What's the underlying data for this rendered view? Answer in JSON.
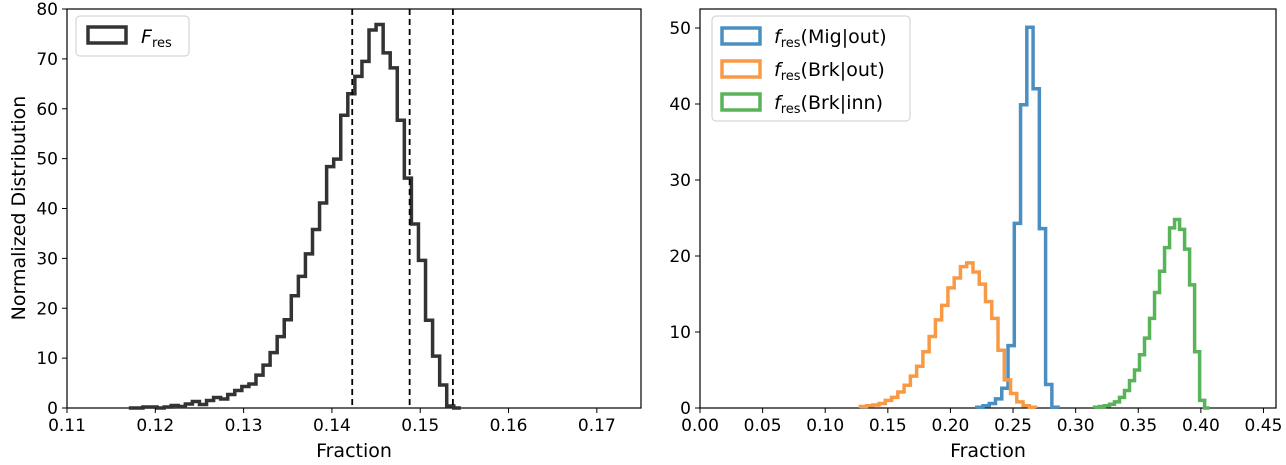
{
  "chart_data": [
    {
      "type": "histogram",
      "xlabel": "Fraction",
      "ylabel": "Normalized Distribution",
      "xlim": [
        0.11,
        0.175
      ],
      "ylim": [
        0,
        80
      ],
      "xticks": [
        "0.11",
        "0.12",
        "0.13",
        "0.14",
        "0.15",
        "0.16",
        "0.17"
      ],
      "yticks": [
        "0",
        "10",
        "20",
        "30",
        "40",
        "50",
        "60",
        "70",
        "80"
      ],
      "legend_position": "top-left",
      "vlines": [
        0.1423,
        0.1488,
        0.1537
      ],
      "series": [
        {
          "name_main": "F",
          "name_sub": "res",
          "color": "#333333",
          "x_start": 0.117,
          "bin_width": 0.0008,
          "values": [
            0,
            0,
            0.2,
            0.2,
            0,
            0.2,
            0.5,
            0.3,
            0.8,
            1.3,
            0.7,
            1.5,
            2.1,
            1.8,
            2.7,
            3.5,
            4.3,
            4.8,
            6.6,
            8.6,
            11.1,
            14.3,
            17.7,
            22.5,
            26.4,
            30.9,
            35.8,
            41.1,
            48.4,
            49.9,
            58.7,
            63.0,
            66.5,
            69.5,
            75.8,
            76.9,
            71.2,
            68.2,
            57.7,
            46.1,
            36.9,
            29.6,
            17.6,
            10.4,
            4.6,
            0.4,
            0
          ]
        }
      ]
    },
    {
      "type": "histogram",
      "xlabel": "Fraction",
      "ylabel": "",
      "xlim": [
        0.0,
        0.46
      ],
      "ylim": [
        0,
        52.5
      ],
      "xticks": [
        "0.00",
        "0.05",
        "0.10",
        "0.15",
        "0.20",
        "0.25",
        "0.30",
        "0.35",
        "0.40",
        "0.45"
      ],
      "yticks": [
        "0",
        "10",
        "20",
        "30",
        "40",
        "50"
      ],
      "legend_position": "top-left",
      "series": [
        {
          "name_main": "f",
          "name_sub": "res",
          "name_rest": "(Mig|out)",
          "color": "#4b8fc0",
          "x_start": 0.221,
          "bin_width": 0.005,
          "values": [
            0.1,
            0.3,
            0.6,
            1.2,
            2.6,
            8.2,
            24.3,
            39.9,
            50.1,
            42.0,
            23.6,
            3.1,
            0.1
          ]
        },
        {
          "name_main": "f",
          "name_sub": "res",
          "name_rest": "(Brk|out)",
          "color": "#f89a45",
          "x_start": 0.128,
          "bin_width": 0.005,
          "values": [
            0.2,
            0.3,
            0.4,
            0.6,
            1.0,
            1.4,
            2.1,
            3.0,
            4.2,
            5.5,
            7.4,
            9.4,
            11.6,
            13.5,
            15.8,
            17.1,
            18.6,
            19.1,
            17.9,
            16.3,
            14.0,
            11.8,
            7.6,
            3.7,
            1.9,
            0.8,
            0.3,
            0.1
          ]
        },
        {
          "name_main": "f",
          "name_sub": "res",
          "name_rest": "(Brk|inn)",
          "color": "#59b359",
          "x_start": 0.315,
          "bin_width": 0.004,
          "values": [
            0.1,
            0.2,
            0.3,
            0.5,
            0.8,
            1.4,
            2.3,
            3.6,
            5.0,
            7.0,
            9.2,
            11.8,
            15.2,
            18.0,
            21.1,
            23.7,
            24.8,
            23.5,
            20.9,
            16.2,
            7.4,
            1.0,
            0
          ]
        }
      ]
    }
  ]
}
